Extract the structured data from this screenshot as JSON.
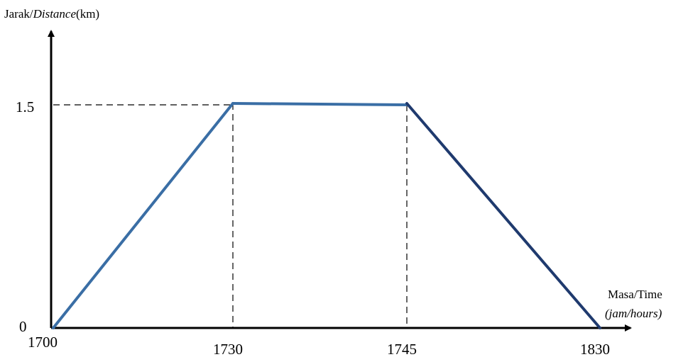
{
  "chart_data": {
    "type": "line",
    "y_label": {
      "part1": "Jarak/",
      "part2": "Distance",
      "part3": "(km)"
    },
    "x_label": {
      "line1": "Masa/Time",
      "line2": "(jam/hours)"
    },
    "x_ticks": [
      "1700",
      "1730",
      "1745",
      "1830"
    ],
    "y_ticks": [
      "0",
      "1.5"
    ],
    "x": [
      "1700",
      "1730",
      "1745",
      "1830"
    ],
    "values": [
      0,
      1.5,
      1.5,
      0
    ],
    "grid": false,
    "colors": {
      "rising": "#3a6ea5",
      "falling": "#1f3a6e",
      "axis": "#000000"
    }
  }
}
